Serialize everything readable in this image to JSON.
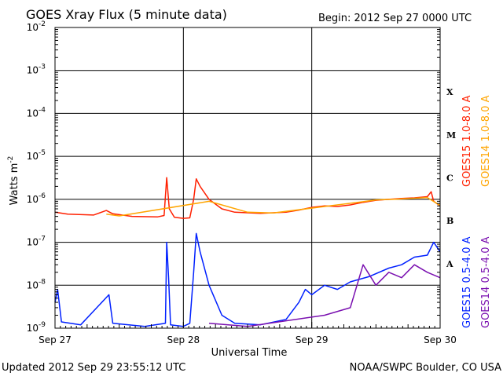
{
  "colors": {
    "goes15_long": "#ff2000",
    "goes14_long": "#ffa500",
    "goes15_short": "#0020ff",
    "goes14_short": "#7a10b0",
    "grid": "#000000",
    "background": "#ffffff"
  },
  "header": {
    "title": "GOES Xray Flux (5 minute data)",
    "begin": "Begin:  2012 Sep 27 0000 UTC"
  },
  "footer": {
    "updated": "Updated 2012 Sep 29 23:55:12 UTC",
    "credit": "NOAA/SWPC Boulder, CO USA"
  },
  "chart_data": {
    "type": "line",
    "title": "GOES Xray Flux (5 minute data)",
    "xlabel": "Universal Time",
    "ylabel_base": "Watts m",
    "ylabel_sup": "-2",
    "y_scale": "log",
    "ylim": [
      1e-09,
      0.01
    ],
    "xlim": [
      0,
      3
    ],
    "grid": true,
    "x_ticks": [
      {
        "value": 0,
        "label": "Sep 27"
      },
      {
        "value": 1,
        "label": "Sep 28"
      },
      {
        "value": 2,
        "label": "Sep 29"
      },
      {
        "value": 3,
        "label": "Sep 30"
      }
    ],
    "y_ticks": [
      {
        "exp": -2,
        "label": "10",
        "sup": "-2"
      },
      {
        "exp": -3,
        "label": "10",
        "sup": "-3"
      },
      {
        "exp": -4,
        "label": "10",
        "sup": "-4"
      },
      {
        "exp": -5,
        "label": "10",
        "sup": "-5"
      },
      {
        "exp": -6,
        "label": "10",
        "sup": "-6"
      },
      {
        "exp": -7,
        "label": "10",
        "sup": "-7"
      },
      {
        "exp": -8,
        "label": "10",
        "sup": "-8"
      },
      {
        "exp": -9,
        "label": "10",
        "sup": "-9"
      }
    ],
    "flare_classes": [
      {
        "label": "X",
        "exp": -3.5
      },
      {
        "label": "M",
        "exp": -4.5
      },
      {
        "label": "C",
        "exp": -5.5
      },
      {
        "label": "B",
        "exp": -6.5
      },
      {
        "label": "A",
        "exp": -7.5
      }
    ],
    "series": [
      {
        "name": "GOES15 1.0-8.0 A",
        "color_key": "goes15_long",
        "points": [
          [
            0,
            5e-07
          ],
          [
            0.1,
            4.5e-07
          ],
          [
            0.3,
            4.3e-07
          ],
          [
            0.4,
            5.5e-07
          ],
          [
            0.45,
            4.6e-07
          ],
          [
            0.6,
            4e-07
          ],
          [
            0.8,
            3.9e-07
          ],
          [
            0.85,
            4.2e-07
          ],
          [
            0.87,
            3.2e-06
          ],
          [
            0.89,
            6e-07
          ],
          [
            0.93,
            3.8e-07
          ],
          [
            1.0,
            3.6e-07
          ],
          [
            1.05,
            3.7e-07
          ],
          [
            1.08,
            1e-06
          ],
          [
            1.1,
            3e-06
          ],
          [
            1.13,
            2e-06
          ],
          [
            1.2,
            1e-06
          ],
          [
            1.3,
            6e-07
          ],
          [
            1.4,
            5e-07
          ],
          [
            1.6,
            4.7e-07
          ],
          [
            1.8,
            5e-07
          ],
          [
            1.9,
            5.6e-07
          ],
          [
            2.0,
            6.5e-07
          ],
          [
            2.1,
            7e-07
          ],
          [
            2.2,
            6.8e-07
          ],
          [
            2.3,
            7.4e-07
          ],
          [
            2.4,
            8.5e-07
          ],
          [
            2.5,
            9.5e-07
          ],
          [
            2.6,
            1e-06
          ],
          [
            2.7,
            1.05e-06
          ],
          [
            2.8,
            1.08e-06
          ],
          [
            2.9,
            1.15e-06
          ],
          [
            2.93,
            1.5e-06
          ],
          [
            2.95,
            9e-07
          ],
          [
            3.0,
            7e-07
          ]
        ]
      },
      {
        "name": "GOES14 1.0-8.0 A",
        "color_key": "goes14_long",
        "points": [
          [
            0.4,
            4.5e-07
          ],
          [
            0.5,
            4.1e-07
          ],
          [
            1.2,
            9e-07
          ],
          [
            1.5,
            5e-07
          ],
          [
            1.7,
            4.8e-07
          ],
          [
            2.1,
            6.8e-07
          ],
          [
            2.4,
            8.8e-07
          ],
          [
            2.5,
            9.7e-07
          ],
          [
            2.7,
            1.02e-06
          ],
          [
            2.9,
            1.1e-06
          ],
          [
            3.0,
            7.2e-07
          ]
        ]
      },
      {
        "name": "GOES15 0.5-4.0 A",
        "color_key": "goes15_short",
        "points": [
          [
            0,
            4e-09
          ],
          [
            0.02,
            8e-09
          ],
          [
            0.05,
            1.4e-09
          ],
          [
            0.2,
            1.2e-09
          ],
          [
            0.42,
            6e-09
          ],
          [
            0.45,
            1.3e-09
          ],
          [
            0.7,
            1.1e-09
          ],
          [
            0.86,
            1.3e-09
          ],
          [
            0.87,
            1e-07
          ],
          [
            0.885,
            1.5e-08
          ],
          [
            0.9,
            1.2e-09
          ],
          [
            1.0,
            1.1e-09
          ],
          [
            1.05,
            1.3e-09
          ],
          [
            1.08,
            2e-08
          ],
          [
            1.1,
            1.6e-07
          ],
          [
            1.13,
            6e-08
          ],
          [
            1.2,
            1e-08
          ],
          [
            1.3,
            2e-09
          ],
          [
            1.4,
            1.3e-09
          ],
          [
            1.6,
            1.2e-09
          ],
          [
            1.8,
            1.6e-09
          ],
          [
            1.9,
            4e-09
          ],
          [
            1.95,
            8e-09
          ],
          [
            2.0,
            6e-09
          ],
          [
            2.1,
            1e-08
          ],
          [
            2.2,
            8e-09
          ],
          [
            2.3,
            1.2e-08
          ],
          [
            2.45,
            1.6e-08
          ],
          [
            2.6,
            2.5e-08
          ],
          [
            2.7,
            3e-08
          ],
          [
            2.8,
            4.5e-08
          ],
          [
            2.9,
            5e-08
          ],
          [
            2.95,
            1e-07
          ],
          [
            3.0,
            6e-08
          ]
        ]
      },
      {
        "name": "GOES14 0.5-4.0 A",
        "color_key": "goes14_short",
        "points": [
          [
            1.2,
            1.3e-09
          ],
          [
            1.5,
            1.1e-09
          ],
          [
            2.1,
            2e-09
          ],
          [
            2.3,
            3e-09
          ],
          [
            2.4,
            3e-08
          ],
          [
            2.5,
            1e-08
          ],
          [
            2.6,
            2e-08
          ],
          [
            2.7,
            1.5e-08
          ],
          [
            2.8,
            3e-08
          ],
          [
            2.9,
            2e-08
          ],
          [
            3.0,
            1.5e-08
          ]
        ]
      }
    ]
  }
}
